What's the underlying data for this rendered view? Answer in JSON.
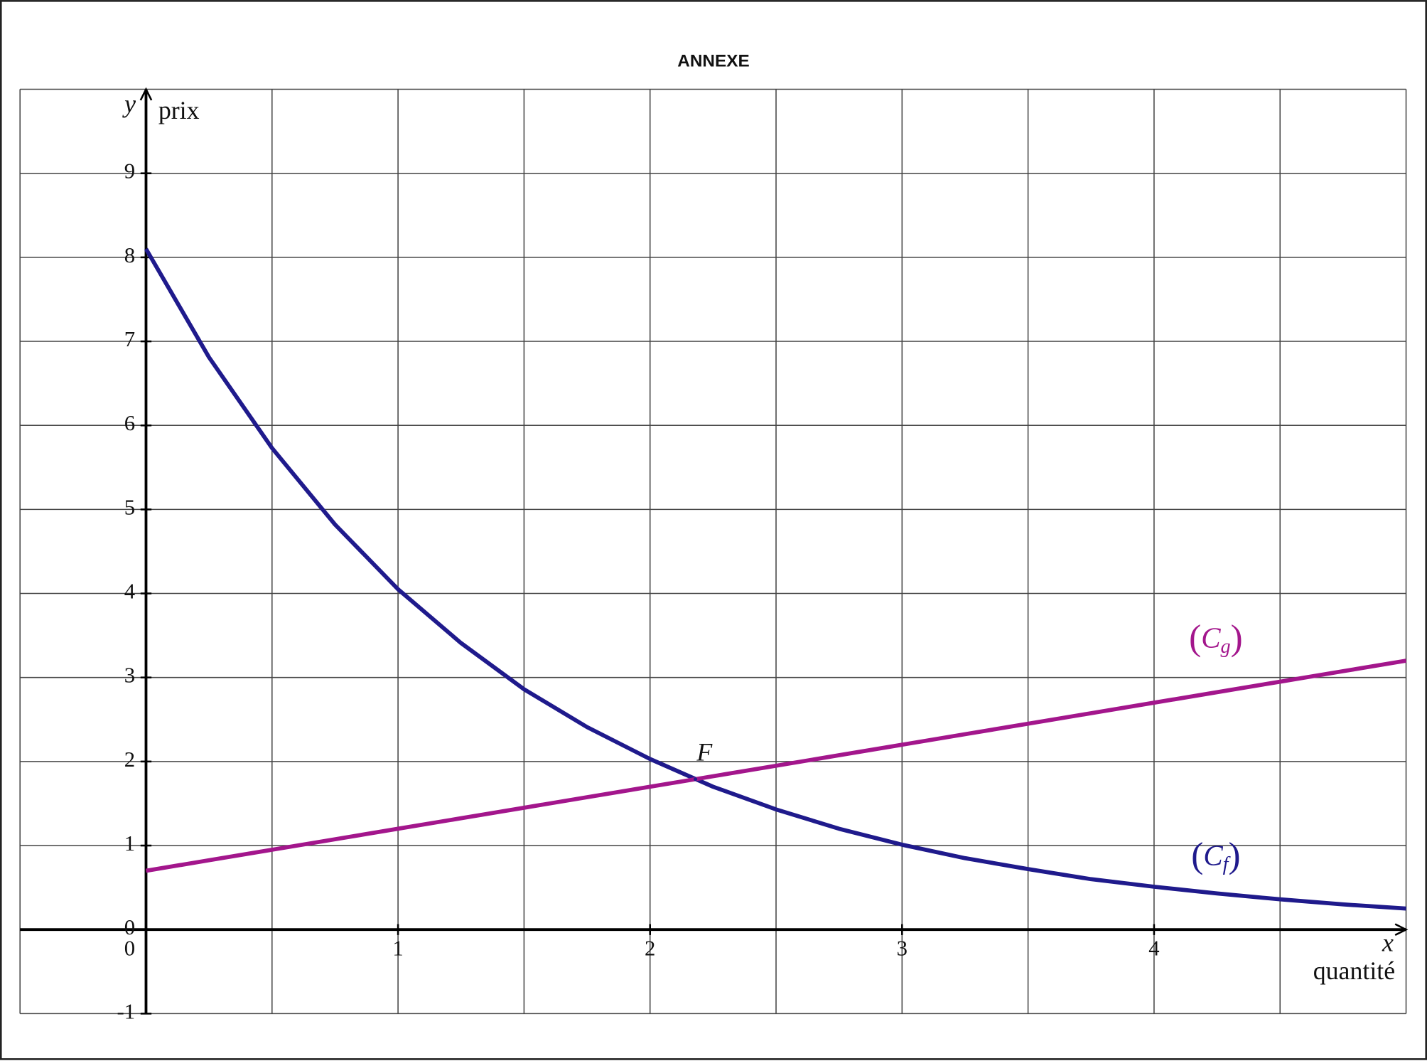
{
  "chart_data": {
    "type": "line",
    "title": "ANNEXE",
    "x_symbol": "x",
    "y_symbol": "y",
    "x_label": "quantité",
    "y_label": "prix",
    "x": [
      0,
      0.25,
      0.5,
      0.75,
      1,
      1.25,
      1.5,
      1.75,
      2,
      2.25,
      2.5,
      2.75,
      3,
      3.25,
      3.5,
      3.75,
      4,
      4.25,
      4.5,
      4.75,
      5
    ],
    "series": [
      {
        "name": "(Cf)",
        "color": "#1f1a8c",
        "values": [
          8.1,
          6.81,
          5.73,
          4.82,
          4.05,
          3.41,
          2.86,
          2.41,
          2.03,
          1.7,
          1.43,
          1.2,
          1.01,
          0.85,
          0.72,
          0.6,
          0.51,
          0.43,
          0.36,
          0.3,
          0.25
        ]
      },
      {
        "name": "(Cg)",
        "color": "#a3168c",
        "values": [
          0.7,
          0.825,
          0.95,
          1.075,
          1.2,
          1.325,
          1.45,
          1.575,
          1.7,
          1.825,
          1.95,
          2.075,
          2.2,
          2.325,
          2.45,
          2.575,
          2.7,
          2.825,
          2.95,
          3.075,
          3.2
        ]
      }
    ],
    "points": [
      {
        "label": "F",
        "x": 2.18,
        "y": 1.79
      }
    ],
    "xlim": [
      -0.5,
      5
    ],
    "ylim": [
      -1,
      10
    ],
    "xticks": [
      0,
      1,
      2,
      3,
      4
    ],
    "xgrid": [
      -0.5,
      0,
      0.5,
      1,
      1.5,
      2,
      2.5,
      3,
      3.5,
      4,
      4.5,
      5
    ],
    "yticks": [
      -1,
      0,
      1,
      2,
      3,
      4,
      5,
      6,
      7,
      8,
      9
    ],
    "ygrid": [
      -1,
      0,
      1,
      2,
      3,
      4,
      5,
      6,
      7,
      8,
      9,
      10
    ],
    "grid": true
  }
}
